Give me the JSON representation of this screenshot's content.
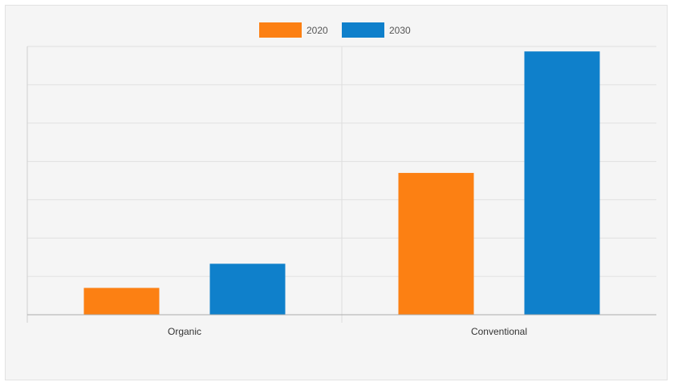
{
  "chart_data": {
    "type": "bar",
    "title": "",
    "xlabel": "",
    "ylabel": "",
    "categories": [
      "Organic",
      "Conventional"
    ],
    "series": [
      {
        "name": "2020",
        "values": [
          0.7,
          3.7
        ],
        "color": "#fc8013"
      },
      {
        "name": "2030",
        "values": [
          1.33,
          6.87
        ],
        "color": "#0f80cb"
      }
    ],
    "ylim": [
      0,
      7
    ],
    "grid": true,
    "legend_position": "top-center"
  }
}
